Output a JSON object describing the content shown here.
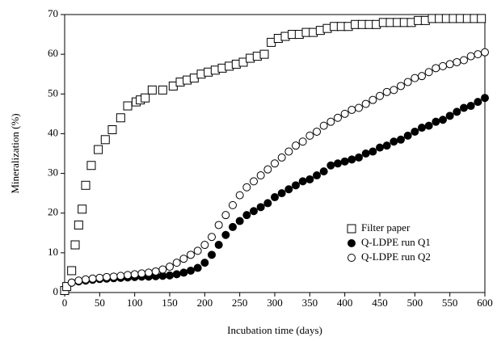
{
  "chart_data": {
    "type": "scatter",
    "xlabel": "Incubation time (days)",
    "ylabel": "Mineralization (%)",
    "xlim": [
      0,
      600
    ],
    "xticks": [
      0,
      50,
      100,
      150,
      200,
      250,
      300,
      350,
      400,
      450,
      500,
      550,
      600
    ],
    "ylim": [
      0,
      70
    ],
    "yticks": [
      0,
      10,
      20,
      30,
      40,
      50,
      60,
      70
    ],
    "legend": "lower right",
    "series": [
      {
        "name": "Filter paper",
        "marker": "square",
        "color": "#000000",
        "x": [
          0,
          3,
          10,
          15,
          20,
          25,
          30,
          38,
          48,
          58,
          68,
          80,
          90,
          102,
          108,
          115,
          125,
          140,
          155,
          165,
          175,
          185,
          195,
          205,
          215,
          225,
          235,
          245,
          255,
          265,
          275,
          285,
          295,
          305,
          315,
          325,
          335,
          345,
          355,
          365,
          375,
          385,
          395,
          405,
          415,
          425,
          435,
          445,
          455,
          465,
          475,
          485,
          495,
          505,
          515,
          525,
          535,
          545,
          555,
          565,
          575,
          585,
          595
        ],
        "values": [
          0.5,
          1.5,
          5.5,
          12,
          17,
          21,
          27,
          32,
          36,
          38.5,
          41,
          44,
          47,
          48,
          48.5,
          49,
          51,
          51,
          52,
          53,
          53.5,
          54,
          55,
          55.5,
          56,
          56.5,
          57,
          57.5,
          58,
          59,
          59.5,
          60,
          63,
          64,
          64.5,
          65,
          65,
          65.5,
          65.5,
          66,
          66.5,
          67,
          67,
          67,
          67.5,
          67.5,
          67.5,
          67.5,
          68,
          68,
          68,
          68,
          68,
          68.5,
          68.5,
          69,
          69,
          69,
          69,
          69,
          69,
          69,
          69
        ]
      },
      {
        "name": "Q-LDPE run Q1",
        "marker": "filled-circle",
        "color": "#000000",
        "x": [
          10,
          20,
          30,
          40,
          50,
          60,
          70,
          80,
          90,
          100,
          110,
          120,
          130,
          140,
          150,
          160,
          170,
          180,
          190,
          200,
          210,
          220,
          230,
          240,
          250,
          260,
          270,
          280,
          290,
          300,
          310,
          320,
          330,
          340,
          350,
          360,
          370,
          380,
          390,
          400,
          410,
          420,
          430,
          440,
          450,
          460,
          470,
          480,
          490,
          500,
          510,
          520,
          530,
          540,
          550,
          560,
          570,
          580,
          590,
          600
        ],
        "values": [
          2.5,
          2.8,
          3,
          3.2,
          3.4,
          3.5,
          3.6,
          3.7,
          3.8,
          3.9,
          4,
          4,
          4.1,
          4.2,
          4.3,
          4.6,
          5,
          5.5,
          6.2,
          7.5,
          9.5,
          12,
          14.5,
          16.5,
          18,
          19.5,
          20.5,
          21.5,
          22.5,
          24,
          25,
          26,
          27,
          28,
          28.5,
          29.5,
          30.5,
          32,
          32.5,
          33,
          33.5,
          34,
          35,
          35.5,
          36.5,
          37,
          38,
          38.5,
          39.5,
          40.5,
          41.5,
          42,
          43,
          43.5,
          44.5,
          45.5,
          46.5,
          47,
          48,
          49
        ]
      },
      {
        "name": "Q-LDPE run Q2",
        "marker": "open-circle",
        "color": "#000000",
        "x": [
          10,
          20,
          30,
          40,
          50,
          60,
          70,
          80,
          90,
          100,
          110,
          120,
          130,
          140,
          150,
          160,
          170,
          180,
          190,
          200,
          210,
          220,
          230,
          240,
          250,
          260,
          270,
          280,
          290,
          300,
          310,
          320,
          330,
          340,
          350,
          360,
          370,
          380,
          390,
          400,
          410,
          420,
          430,
          440,
          450,
          460,
          470,
          480,
          490,
          500,
          510,
          520,
          530,
          540,
          550,
          560,
          570,
          580,
          590,
          600
        ],
        "values": [
          2.5,
          3,
          3.3,
          3.5,
          3.7,
          3.9,
          4,
          4.2,
          4.4,
          4.6,
          4.8,
          5,
          5.3,
          5.8,
          6.5,
          7.5,
          8.5,
          9.5,
          10.5,
          12,
          14,
          17,
          19.5,
          22,
          24.5,
          26.5,
          28,
          29.5,
          31,
          32.5,
          34,
          35.5,
          37,
          38,
          39.5,
          40.5,
          42,
          43,
          44,
          45,
          46,
          46.5,
          47.5,
          48.5,
          49.5,
          50.5,
          51,
          52,
          53,
          54,
          54.5,
          55.5,
          56.5,
          57,
          57.5,
          58,
          58.5,
          59.5,
          60,
          60.5
        ]
      }
    ]
  }
}
